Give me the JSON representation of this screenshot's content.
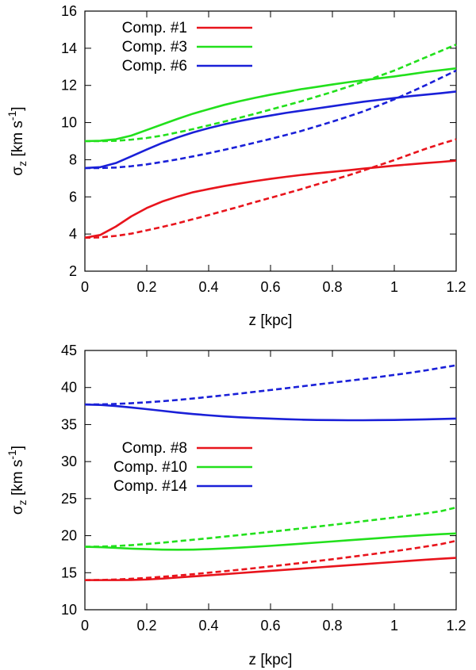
{
  "chart_data": [
    {
      "type": "line",
      "title": "",
      "xlabel": "z [kpc]",
      "ylabel": {
        "sym": "σ",
        "sub": "z",
        "unit_pre": " [km s",
        "sup": "-1",
        "unit_post": "]"
      },
      "xlim": [
        0,
        1.2
      ],
      "ylim": [
        2,
        16
      ],
      "x_ticks": [
        "0",
        "0.2",
        "0.4",
        "0.6",
        "0.8",
        "1",
        "1.2"
      ],
      "y_ticks": [
        "2",
        "4",
        "6",
        "8",
        "10",
        "12",
        "14",
        "16"
      ],
      "legend_position": "top-left",
      "x": [
        0,
        0.05,
        0.1,
        0.15,
        0.2,
        0.25,
        0.3,
        0.35,
        0.4,
        0.45,
        0.5,
        0.55,
        0.6,
        0.65,
        0.7,
        0.75,
        0.8,
        0.85,
        0.9,
        0.95,
        1.0,
        1.05,
        1.1,
        1.15,
        1.2
      ],
      "series": [
        {
          "name": "Comp. #1",
          "color": "#e8141c",
          "style": "solid",
          "values": [
            3.8,
            3.95,
            4.4,
            4.95,
            5.4,
            5.75,
            6.02,
            6.25,
            6.42,
            6.58,
            6.72,
            6.85,
            6.97,
            7.08,
            7.18,
            7.27,
            7.35,
            7.43,
            7.52,
            7.6,
            7.68,
            7.75,
            7.82,
            7.88,
            7.95
          ]
        },
        {
          "name": "Comp. #1 (dashed)",
          "color": "#e8141c",
          "style": "dashed",
          "values": [
            3.8,
            3.82,
            3.9,
            4.02,
            4.2,
            4.38,
            4.58,
            4.8,
            5.02,
            5.25,
            5.48,
            5.72,
            5.95,
            6.18,
            6.42,
            6.67,
            6.9,
            7.15,
            7.42,
            7.7,
            7.98,
            8.28,
            8.58,
            8.85,
            9.1
          ]
        },
        {
          "name": "Comp. #3",
          "color": "#22e01c",
          "style": "solid",
          "values": [
            9.0,
            9.02,
            9.1,
            9.3,
            9.6,
            9.9,
            10.2,
            10.48,
            10.72,
            10.95,
            11.15,
            11.33,
            11.5,
            11.65,
            11.8,
            11.92,
            12.05,
            12.17,
            12.28,
            12.38,
            12.48,
            12.6,
            12.72,
            12.82,
            12.92
          ]
        },
        {
          "name": "Comp. #3 (dashed)",
          "color": "#22e01c",
          "style": "dashed",
          "values": [
            9.0,
            9.0,
            9.02,
            9.08,
            9.17,
            9.3,
            9.47,
            9.65,
            9.85,
            10.05,
            10.26,
            10.47,
            10.7,
            10.92,
            11.15,
            11.4,
            11.65,
            11.92,
            12.2,
            12.5,
            12.8,
            13.15,
            13.5,
            13.85,
            14.2
          ]
        },
        {
          "name": "Comp. #6",
          "color": "#1a20d8",
          "style": "solid",
          "values": [
            7.55,
            7.6,
            7.82,
            8.18,
            8.55,
            8.9,
            9.2,
            9.47,
            9.7,
            9.9,
            10.08,
            10.24,
            10.38,
            10.52,
            10.64,
            10.76,
            10.88,
            11.0,
            11.12,
            11.22,
            11.32,
            11.42,
            11.5,
            11.58,
            11.67
          ]
        },
        {
          "name": "Comp. #6 (dashed)",
          "color": "#1a20d8",
          "style": "dashed",
          "values": [
            7.55,
            7.55,
            7.58,
            7.65,
            7.75,
            7.88,
            8.02,
            8.18,
            8.35,
            8.53,
            8.72,
            8.92,
            9.12,
            9.33,
            9.55,
            9.8,
            10.05,
            10.32,
            10.6,
            10.92,
            11.25,
            11.62,
            12.0,
            12.4,
            12.8
          ]
        }
      ]
    },
    {
      "type": "line",
      "title": "",
      "xlabel": "z [kpc]",
      "ylabel": {
        "sym": "σ",
        "sub": "z",
        "unit_pre": " [km s",
        "sup": "-1",
        "unit_post": "]"
      },
      "xlim": [
        0,
        1.2
      ],
      "ylim": [
        10,
        45
      ],
      "x_ticks": [
        "0",
        "0.2",
        "0.4",
        "0.6",
        "0.8",
        "1",
        "1.2"
      ],
      "y_ticks": [
        "10",
        "15",
        "20",
        "25",
        "30",
        "35",
        "40",
        "45"
      ],
      "legend_position": "middle-left",
      "x": [
        0,
        0.05,
        0.1,
        0.15,
        0.2,
        0.25,
        0.3,
        0.35,
        0.4,
        0.45,
        0.5,
        0.55,
        0.6,
        0.65,
        0.7,
        0.75,
        0.8,
        0.85,
        0.9,
        0.95,
        1.0,
        1.05,
        1.1,
        1.15,
        1.2
      ],
      "series": [
        {
          "name": "Comp. #8",
          "color": "#e8141c",
          "style": "solid",
          "values": [
            14.0,
            14.0,
            14.0,
            14.02,
            14.08,
            14.2,
            14.35,
            14.5,
            14.65,
            14.8,
            14.95,
            15.1,
            15.25,
            15.4,
            15.55,
            15.7,
            15.85,
            16.0,
            16.15,
            16.3,
            16.45,
            16.6,
            16.75,
            16.88,
            17.0
          ]
        },
        {
          "name": "Comp. #8 (dashed)",
          "color": "#e8141c",
          "style": "dashed",
          "values": [
            14.0,
            14.02,
            14.08,
            14.18,
            14.3,
            14.45,
            14.62,
            14.8,
            15.0,
            15.2,
            15.4,
            15.62,
            15.85,
            16.08,
            16.32,
            16.57,
            16.82,
            17.08,
            17.35,
            17.62,
            17.9,
            18.2,
            18.52,
            18.85,
            19.3
          ]
        },
        {
          "name": "Comp. #10",
          "color": "#22e01c",
          "style": "solid",
          "values": [
            18.5,
            18.45,
            18.35,
            18.25,
            18.18,
            18.12,
            18.1,
            18.12,
            18.18,
            18.27,
            18.38,
            18.5,
            18.63,
            18.77,
            18.92,
            19.07,
            19.22,
            19.37,
            19.52,
            19.67,
            19.82,
            19.95,
            20.08,
            20.2,
            20.3
          ]
        },
        {
          "name": "Comp. #10 (dashed)",
          "color": "#22e01c",
          "style": "dashed",
          "values": [
            18.5,
            18.52,
            18.6,
            18.72,
            18.88,
            19.05,
            19.25,
            19.45,
            19.65,
            19.87,
            20.08,
            20.3,
            20.52,
            20.75,
            20.98,
            21.22,
            21.46,
            21.7,
            21.95,
            22.2,
            22.45,
            22.72,
            23.0,
            23.3,
            23.8
          ]
        },
        {
          "name": "Comp. #14",
          "color": "#1a20d8",
          "style": "solid",
          "values": [
            37.7,
            37.65,
            37.5,
            37.3,
            37.08,
            36.85,
            36.62,
            36.42,
            36.25,
            36.1,
            35.98,
            35.88,
            35.8,
            35.72,
            35.66,
            35.62,
            35.6,
            35.58,
            35.58,
            35.6,
            35.62,
            35.65,
            35.7,
            35.75,
            35.8
          ]
        },
        {
          "name": "Comp. #14 (dashed)",
          "color": "#1a20d8",
          "style": "dashed",
          "values": [
            37.7,
            37.72,
            37.78,
            37.88,
            38.0,
            38.15,
            38.32,
            38.52,
            38.73,
            38.95,
            39.18,
            39.42,
            39.66,
            39.9,
            40.15,
            40.4,
            40.65,
            40.9,
            41.15,
            41.42,
            41.7,
            41.98,
            42.3,
            42.65,
            43.0
          ]
        }
      ]
    }
  ]
}
